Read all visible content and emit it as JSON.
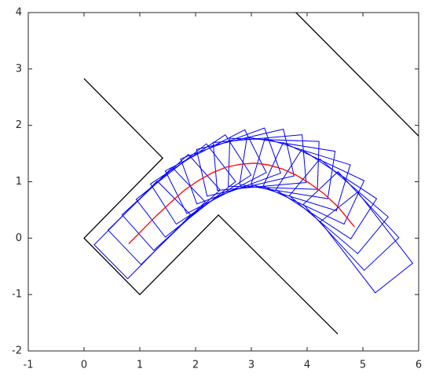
{
  "chart_data": {
    "type": "line",
    "xlim": [
      -1,
      6
    ],
    "ylim": [
      -2,
      4
    ],
    "xticks": [
      -1,
      0,
      1,
      2,
      3,
      4,
      5,
      6
    ],
    "yticks": [
      -2,
      -1,
      0,
      1,
      2,
      3,
      4
    ],
    "walls": [
      {
        "color": "#000000",
        "x": [
          0,
          1.41,
          0,
          1,
          2.41,
          4.55
        ],
        "y": [
          2.83,
          1.42,
          0,
          -1,
          0.41,
          -1.7
        ]
      },
      {
        "color": "#000000",
        "x": [
          3.8,
          6
        ],
        "y": [
          4,
          1.81
        ]
      }
    ],
    "poses": {
      "path_color": "#ff0000",
      "robot_color": "#0000ff",
      "x": [
        0.8,
        1.05,
        1.3,
        1.55,
        1.8,
        2.05,
        2.3,
        2.55,
        2.8,
        3.05,
        3.3,
        3.55,
        3.8,
        4.05,
        4.3,
        4.55,
        4.85
      ],
      "y": [
        -0.1,
        0.15,
        0.4,
        0.63,
        0.85,
        1.02,
        1.16,
        1.26,
        1.31,
        1.33,
        1.3,
        1.23,
        1.12,
        0.97,
        0.79,
        0.56,
        0.2
      ],
      "theta": [
        45,
        44,
        42,
        38,
        33,
        27,
        20,
        13,
        5,
        -2,
        -9,
        -17,
        -25,
        -33,
        -40,
        -47,
        -52
      ]
    },
    "robot": {
      "length": 1.6,
      "width": 0.85,
      "rear_offset": 0.45
    }
  }
}
